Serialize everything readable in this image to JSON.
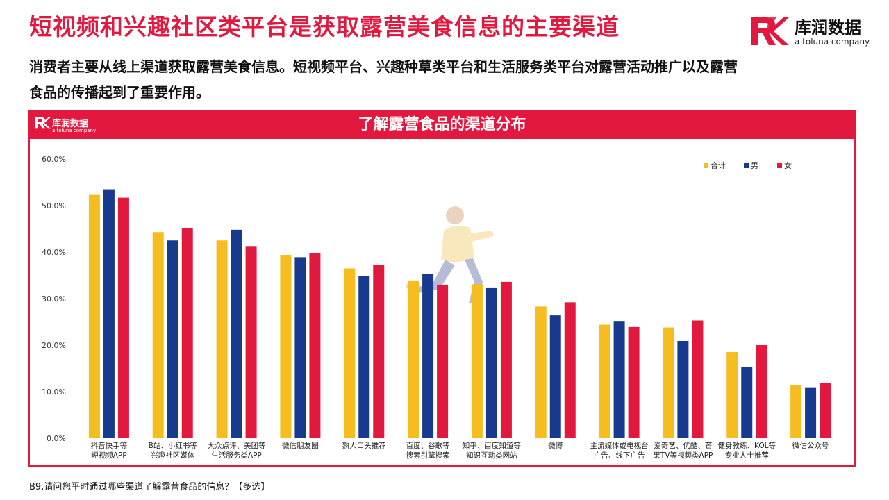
{
  "header": {
    "title": "短视频和兴趣社区类平台是获取露营美食信息的主要渠道",
    "subtitle": "消费者主要从线上渠道获取露营美食信息。短视频平台、兴趣种草类平台和生活服务类平台对露营活动推广以及露营食品的传播起到了重要作用。"
  },
  "logo": {
    "name": "库润数据",
    "sub": "a toluna company",
    "accent_color": "#e3183f"
  },
  "chart_panel": {
    "title": "了解露营食品的渠道分布",
    "icon": "runner-illustration"
  },
  "footnote": "B9.请问您平时通过哪些渠道了解露营食品的信息？【多选】",
  "chart_data": {
    "type": "bar",
    "title": "了解露营食品的渠道分布",
    "xlabel": "",
    "ylabel": "",
    "ylim": [
      0,
      60
    ],
    "yticks": [
      "0.0%",
      "10.0%",
      "20.0%",
      "30.0%",
      "40.0%",
      "50.0%",
      "60.0%"
    ],
    "grid": false,
    "legend_position": "top-right",
    "categories": [
      [
        "抖音快手等",
        "短视频APP"
      ],
      [
        "B站、小红书等",
        "兴趣社区媒体"
      ],
      [
        "大众点评、美团等",
        "生活服务类APP"
      ],
      [
        "微信朋友圈"
      ],
      [
        "熟人口头推荐"
      ],
      [
        "百度、谷歌等",
        "搜索引擎搜索"
      ],
      [
        "知乎、百度知道等",
        "知识互动类网站"
      ],
      [
        "微博"
      ],
      [
        "主流媒体或电视台",
        "广告、线下广告"
      ],
      [
        "爱奇艺、优酷、芒",
        "果TV等视频类APP"
      ],
      [
        "健身教练、KOL等",
        "专业人士推荐"
      ],
      [
        "微信公众号"
      ]
    ],
    "series": [
      {
        "name": "合计",
        "color": "#f5bd1f",
        "values": [
          52.3,
          44.3,
          42.5,
          39.4,
          36.5,
          33.9,
          33.1,
          28.3,
          24.4,
          23.8,
          18.5,
          11.4
        ]
      },
      {
        "name": "男",
        "color": "#173a8f",
        "values": [
          53.5,
          42.5,
          44.8,
          38.9,
          34.8,
          35.3,
          32.4,
          26.4,
          25.2,
          20.9,
          15.3,
          10.8
        ]
      },
      {
        "name": "女",
        "color": "#e3183f",
        "values": [
          51.7,
          45.2,
          41.3,
          39.7,
          37.3,
          33.0,
          33.6,
          29.2,
          23.9,
          25.3,
          20.0,
          11.8
        ]
      }
    ]
  }
}
